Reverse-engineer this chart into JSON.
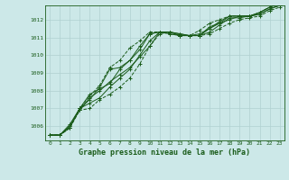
{
  "title": "Graphe pression niveau de la mer (hPa)",
  "bg_color": "#cce8e8",
  "grid_color": "#b0d0d0",
  "line_color": "#1a5c1a",
  "xlim": [
    -0.5,
    23.5
  ],
  "ylim": [
    1005.2,
    1012.8
  ],
  "yticks": [
    1006,
    1007,
    1008,
    1009,
    1010,
    1011,
    1012
  ],
  "xticks": [
    0,
    1,
    2,
    3,
    4,
    5,
    6,
    7,
    8,
    9,
    10,
    11,
    12,
    13,
    14,
    15,
    16,
    17,
    18,
    19,
    20,
    21,
    22,
    23
  ],
  "series": [
    {
      "y": [
        1005.5,
        1005.5,
        1006.1,
        1007.0,
        1007.8,
        1008.1,
        1008.4,
        1009.2,
        1009.7,
        1010.3,
        1011.2,
        1011.3,
        1011.3,
        1011.1,
        1011.1,
        1011.1,
        1011.5,
        1011.9,
        1012.2,
        1012.2,
        1012.2,
        1012.4,
        1012.7,
        1012.9
      ],
      "style": "-"
    },
    {
      "y": [
        1005.5,
        1005.5,
        1005.9,
        1007.0,
        1007.3,
        1007.6,
        1008.2,
        1008.7,
        1009.2,
        1010.0,
        1010.8,
        1011.3,
        1011.3,
        1011.2,
        1011.1,
        1011.1,
        1011.3,
        1011.7,
        1012.1,
        1012.1,
        1012.2,
        1012.3,
        1012.6,
        1012.8
      ],
      "style": "-"
    },
    {
      "y": [
        1005.5,
        1005.5,
        1006.0,
        1006.9,
        1007.6,
        1008.0,
        1008.5,
        1008.9,
        1009.3,
        1009.9,
        1010.5,
        1011.3,
        1011.3,
        1011.2,
        1011.1,
        1011.2,
        1011.5,
        1011.8,
        1012.2,
        1012.2,
        1012.2,
        1012.4,
        1012.7,
        1012.9
      ],
      "style": "-"
    },
    {
      "y": [
        1005.5,
        1005.5,
        1006.0,
        1007.0,
        1007.5,
        1008.2,
        1009.2,
        1009.3,
        1009.7,
        1010.5,
        1011.2,
        1011.3,
        1011.2,
        1011.1,
        1011.1,
        1011.1,
        1011.6,
        1011.8,
        1012.0,
        1012.2,
        1012.2,
        1012.3,
        1012.6,
        1012.8
      ],
      "style": "-"
    },
    {
      "y": [
        1005.5,
        1005.5,
        1005.9,
        1006.9,
        1007.0,
        1007.5,
        1007.8,
        1008.2,
        1008.7,
        1009.5,
        1010.5,
        1011.2,
        1011.3,
        1011.1,
        1011.1,
        1011.1,
        1011.2,
        1011.5,
        1011.8,
        1012.0,
        1012.1,
        1012.2,
        1012.5,
        1012.7
      ],
      "style": "--"
    },
    {
      "y": [
        1005.5,
        1005.5,
        1005.9,
        1007.0,
        1007.7,
        1008.3,
        1009.3,
        1009.7,
        1010.4,
        1010.8,
        1011.3,
        1011.3,
        1011.2,
        1011.1,
        1011.1,
        1011.4,
        1011.8,
        1012.0,
        1012.2,
        1012.2,
        1012.2,
        1012.4,
        1012.7,
        1013.0
      ],
      "style": "--"
    }
  ],
  "title_fontsize": 6,
  "tick_fontsize": 4.5
}
